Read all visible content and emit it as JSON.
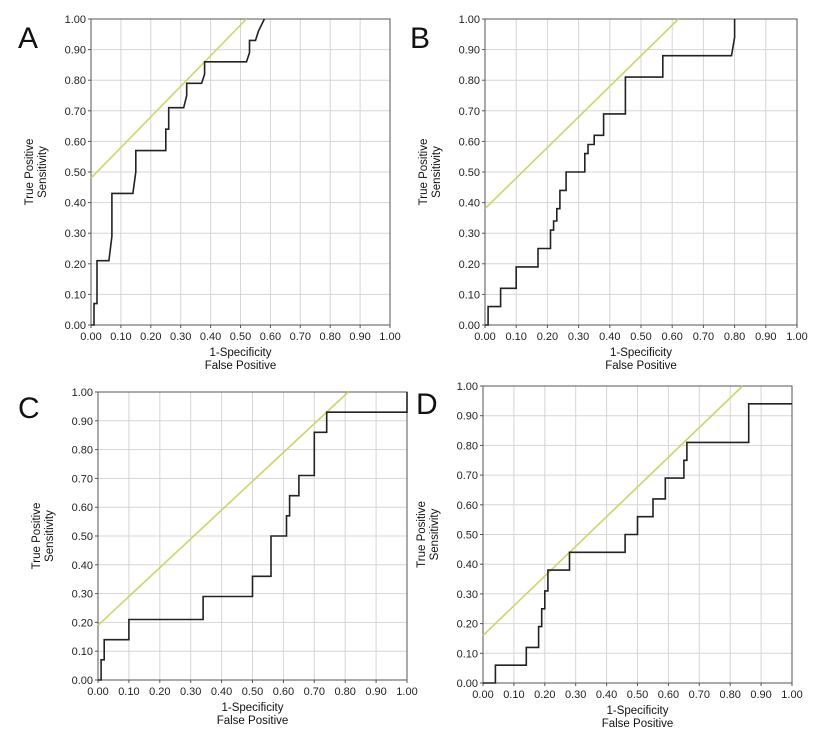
{
  "chart_data": [
    {
      "panel_label": "A",
      "type": "line",
      "xlabel": [
        "1-Specificity",
        "False Positive"
      ],
      "ylabel": [
        "True Positive",
        "Sensitivity"
      ],
      "xlim": [
        0,
        1
      ],
      "ylim": [
        0,
        1
      ],
      "ticks": [
        "0.00",
        "0.10",
        "0.20",
        "0.30",
        "0.40",
        "0.50",
        "0.60",
        "0.70",
        "0.80",
        "0.90",
        "1.00"
      ],
      "grid": true,
      "series": [
        {
          "x": [
            0,
            0.01,
            0.01,
            0.02,
            0.02,
            0.06,
            0.07,
            0.07,
            0.14,
            0.15,
            0.15,
            0.25,
            0.25,
            0.26,
            0.26,
            0.31,
            0.32,
            0.32,
            0.37,
            0.38,
            0.38,
            0.52,
            0.53,
            0.53,
            0.55,
            0.56,
            0.58
          ],
          "y": [
            0,
            0,
            0.07,
            0.07,
            0.21,
            0.21,
            0.29,
            0.43,
            0.43,
            0.5,
            0.57,
            0.57,
            0.64,
            0.64,
            0.71,
            0.71,
            0.75,
            0.79,
            0.79,
            0.82,
            0.86,
            0.86,
            0.89,
            0.93,
            0.93,
            0.96,
            1.0
          ]
        }
      ],
      "reference_line": {
        "x": [
          0,
          0.52
        ],
        "y": [
          0.48,
          1.0
        ]
      }
    },
    {
      "panel_label": "B",
      "type": "line",
      "xlabel": [
        "1-Specificity",
        "False Positive"
      ],
      "ylabel": [
        "True Positive",
        "Sensitivity"
      ],
      "xlim": [
        0,
        1
      ],
      "ylim": [
        0,
        1
      ],
      "ticks": [
        "0.00",
        "0.10",
        "0.20",
        "0.30",
        "0.40",
        "0.50",
        "0.60",
        "0.70",
        "0.80",
        "0.90",
        "1.00"
      ],
      "grid": true,
      "series": [
        {
          "x": [
            0,
            0.01,
            0.01,
            0.05,
            0.05,
            0.1,
            0.1,
            0.17,
            0.17,
            0.21,
            0.21,
            0.22,
            0.22,
            0.23,
            0.23,
            0.24,
            0.24,
            0.26,
            0.26,
            0.32,
            0.32,
            0.33,
            0.33,
            0.35,
            0.35,
            0.38,
            0.38,
            0.45,
            0.45,
            0.57,
            0.57,
            0.79,
            0.8,
            0.8
          ],
          "y": [
            0,
            0,
            0.06,
            0.06,
            0.12,
            0.12,
            0.19,
            0.19,
            0.25,
            0.25,
            0.31,
            0.31,
            0.34,
            0.34,
            0.38,
            0.38,
            0.44,
            0.44,
            0.5,
            0.5,
            0.56,
            0.56,
            0.59,
            0.59,
            0.62,
            0.62,
            0.69,
            0.69,
            0.81,
            0.81,
            0.88,
            0.88,
            0.94,
            1.0
          ]
        }
      ],
      "reference_line": {
        "x": [
          0,
          0.62
        ],
        "y": [
          0.38,
          1.0
        ]
      }
    },
    {
      "panel_label": "C",
      "type": "line",
      "xlabel": [
        "1-Specificity",
        "False Positive"
      ],
      "ylabel": [
        "True Positive",
        "Sensitivity"
      ],
      "xlim": [
        0,
        1
      ],
      "ylim": [
        0,
        1
      ],
      "ticks": [
        "0.00",
        "0.10",
        "0.20",
        "0.30",
        "0.40",
        "0.50",
        "0.60",
        "0.70",
        "0.80",
        "0.90",
        "1.00"
      ],
      "grid": true,
      "series": [
        {
          "x": [
            0,
            0.01,
            0.01,
            0.02,
            0.02,
            0.1,
            0.1,
            0.34,
            0.34,
            0.5,
            0.5,
            0.56,
            0.56,
            0.61,
            0.61,
            0.62,
            0.62,
            0.65,
            0.65,
            0.7,
            0.7,
            0.74,
            0.74,
            1.0,
            1.0
          ],
          "y": [
            0,
            0,
            0.07,
            0.07,
            0.14,
            0.14,
            0.21,
            0.21,
            0.29,
            0.29,
            0.36,
            0.36,
            0.5,
            0.5,
            0.57,
            0.57,
            0.64,
            0.64,
            0.71,
            0.71,
            0.86,
            0.86,
            0.93,
            0.93,
            1.0
          ]
        }
      ],
      "reference_line": {
        "x": [
          0,
          0.81
        ],
        "y": [
          0.19,
          1.0
        ]
      }
    },
    {
      "panel_label": "D",
      "type": "line",
      "xlabel": [
        "1-Specificity",
        "False Positive"
      ],
      "ylabel": [
        "True Positive",
        "Sensitivity"
      ],
      "xlim": [
        0,
        1
      ],
      "ylim": [
        0,
        1
      ],
      "ticks": [
        "0.00",
        "0.10",
        "0.20",
        "0.30",
        "0.40",
        "0.50",
        "0.60",
        "0.70",
        "0.80",
        "0.90",
        "1.00"
      ],
      "grid": true,
      "series": [
        {
          "x": [
            0,
            0.04,
            0.04,
            0.14,
            0.14,
            0.18,
            0.18,
            0.19,
            0.19,
            0.2,
            0.2,
            0.21,
            0.21,
            0.28,
            0.28,
            0.46,
            0.46,
            0.5,
            0.5,
            0.55,
            0.55,
            0.59,
            0.59,
            0.65,
            0.65,
            0.66,
            0.66,
            0.86,
            0.86,
            1.0
          ],
          "y": [
            0,
            0,
            0.06,
            0.06,
            0.12,
            0.12,
            0.19,
            0.19,
            0.25,
            0.25,
            0.31,
            0.31,
            0.38,
            0.38,
            0.44,
            0.44,
            0.5,
            0.5,
            0.56,
            0.56,
            0.62,
            0.62,
            0.69,
            0.69,
            0.75,
            0.75,
            0.81,
            0.81,
            0.94,
            0.94
          ]
        }
      ],
      "reference_line": {
        "x": [
          0,
          0.84
        ],
        "y": [
          0.16,
          1.0
        ]
      }
    }
  ]
}
